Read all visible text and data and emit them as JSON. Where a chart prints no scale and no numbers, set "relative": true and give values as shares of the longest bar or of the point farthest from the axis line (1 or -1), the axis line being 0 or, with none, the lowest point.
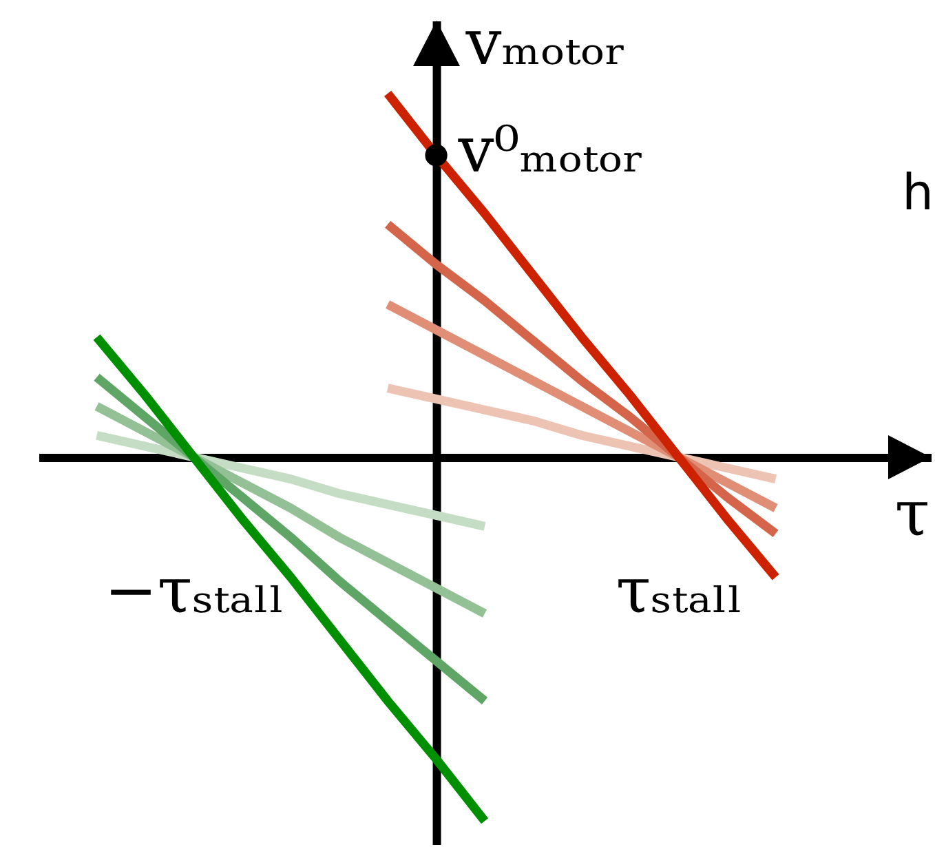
{
  "chart_data": {
    "type": "line",
    "relative": true,
    "xlabel": "τ",
    "ylabel": "vₘₒₜₒᵣ",
    "categories": [
      null,
      null,
      "−τₛₜₐₗₗ",
      null,
      null,
      null,
      null,
      null,
      null,
      null,
      null,
      null,
      "τₛₜₐₗₗ",
      null,
      null
    ],
    "annotations": [
      "v⁰ₘₒₜₒᵣ",
      "h"
    ],
    "series": [
      {
        "color": "#edc4b4",
        "values": [
          null,
          null,
          null,
          null,
          null,
          null,
          0.19,
          0.16,
          0.13,
          0.1,
          0.06,
          0.03,
          0,
          -0.03,
          -0.06
        ]
      },
      {
        "color": "#e08f76",
        "values": [
          null,
          null,
          null,
          null,
          null,
          null,
          0.42,
          0.35,
          0.28,
          0.21,
          0.14,
          0.07,
          0,
          -0.07,
          -0.14
        ]
      },
      {
        "color": "#d4644a",
        "values": [
          null,
          null,
          null,
          null,
          null,
          null,
          0.64,
          0.53,
          0.43,
          0.32,
          0.21,
          0.11,
          0,
          -0.11,
          -0.21
        ]
      },
      {
        "color": "#cc2200",
        "values": [
          null,
          null,
          null,
          null,
          null,
          null,
          1,
          0.83,
          0.67,
          0.5,
          0.33,
          0.17,
          0,
          -0.17,
          -0.33
        ]
      },
      {
        "color": "#c5dcc5",
        "values": [
          0.06,
          0.03,
          0,
          -0.03,
          -0.06,
          -0.1,
          -0.13,
          -0.16,
          -0.19,
          null,
          null,
          null,
          null,
          null,
          null
        ]
      },
      {
        "color": "#93c094",
        "values": [
          0.14,
          0.07,
          0,
          -0.07,
          -0.14,
          -0.22,
          -0.29,
          -0.36,
          -0.43,
          null,
          null,
          null,
          null,
          null,
          null
        ]
      },
      {
        "color": "#5fa565",
        "values": [
          0.22,
          0.11,
          0,
          -0.11,
          -0.22,
          -0.34,
          -0.45,
          -0.56,
          -0.67,
          null,
          null,
          null,
          null,
          null,
          null
        ]
      },
      {
        "color": "#008f00",
        "values": [
          0.33,
          0.17,
          0,
          -0.17,
          -0.33,
          -0.5,
          -0.67,
          -0.83,
          -1,
          null,
          null,
          null,
          null,
          null,
          null
        ]
      },
      {
        "type": "scatter",
        "marker": "circle",
        "color": "#000000",
        "values": [
          null,
          null,
          null,
          null,
          null,
          null,
          null,
          0.83,
          null,
          null,
          null,
          null,
          null,
          null,
          null
        ]
      }
    ]
  }
}
